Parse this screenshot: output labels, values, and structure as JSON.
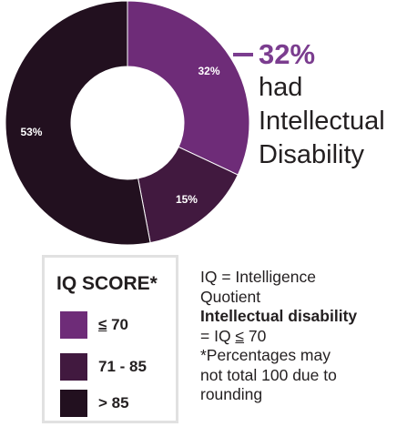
{
  "chart_data": {
    "type": "pie",
    "categories": [
      "≤ 70",
      "71 - 85",
      "> 85"
    ],
    "values": [
      32,
      15,
      53
    ],
    "data_labels": [
      "32%",
      "15%",
      "53%"
    ],
    "colors": [
      "#6e2c78",
      "#41193f",
      "#22101f"
    ]
  },
  "callout": {
    "percent": "32%",
    "lines": [
      "had",
      "Intellectual",
      "Disability"
    ]
  },
  "legend": {
    "title": "IQ SCORE*",
    "items": [
      {
        "prefix": "≤",
        "rest": " 70",
        "color": "#6e2c78"
      },
      {
        "prefix": "",
        "rest": "71 - 85",
        "color": "#41193f"
      },
      {
        "prefix": "",
        "rest": "> 85",
        "color": "#22101f"
      }
    ]
  },
  "notes": {
    "iq_line1": "IQ = Intelligence",
    "iq_line2": "Quotient",
    "id_heading": "Intellectual disability",
    "id_def_prefix": "= IQ ",
    "id_def_le": "≤",
    "id_def_suffix": " 70",
    "footnote_line1": "*Percentages may",
    "footnote_line2": "not total 100 due to",
    "footnote_line3": "rounding"
  }
}
